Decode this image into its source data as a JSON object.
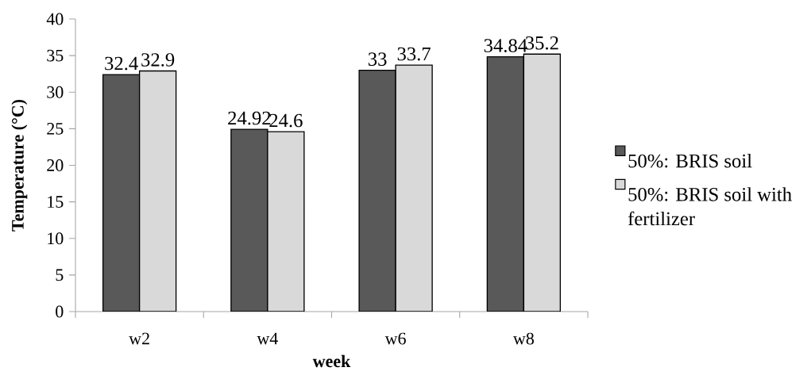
{
  "chart_data": {
    "type": "bar",
    "xlabel": "week",
    "ylabel": "Temperature (°C)",
    "categories": [
      "w2",
      "w4",
      "w6",
      "w8"
    ],
    "series": [
      {
        "name": "50%: BRIS soil",
        "color": "#595959",
        "values": [
          32.4,
          24.92,
          33,
          34.84
        ]
      },
      {
        "name": "50%: BRIS soil with fertilizer",
        "color": "#d9d9d9",
        "values": [
          32.9,
          24.6,
          33.7,
          35.2
        ]
      }
    ],
    "ylim": [
      0,
      40
    ],
    "yticks": [
      0,
      5,
      10,
      15,
      20,
      25,
      30,
      35,
      40
    ],
    "data_labels": true,
    "legend": "right"
  }
}
